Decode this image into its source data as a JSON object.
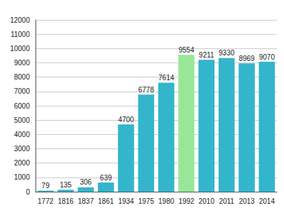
{
  "chart_data": {
    "type": "bar",
    "categories": [
      "1772",
      "1816",
      "1837",
      "1861",
      "1934",
      "1975",
      "1980",
      "1992",
      "2010",
      "2011",
      "2013",
      "2014"
    ],
    "values": [
      79,
      135,
      306,
      639,
      4700,
      6778,
      7614,
      9554,
      9211,
      9330,
      8969,
      9070
    ],
    "colors": [
      "#33b5cc",
      "#33b5cc",
      "#33b5cc",
      "#33b5cc",
      "#33b5cc",
      "#33b5cc",
      "#33b5cc",
      "#99e699",
      "#33b5cc",
      "#33b5cc",
      "#33b5cc",
      "#33b5cc"
    ],
    "ylim": [
      0,
      12000
    ],
    "yticks": [
      0,
      1000,
      2000,
      3000,
      4000,
      5000,
      6000,
      7000,
      8000,
      9000,
      10000,
      11000,
      12000
    ],
    "grid": true,
    "data_labels": true
  }
}
